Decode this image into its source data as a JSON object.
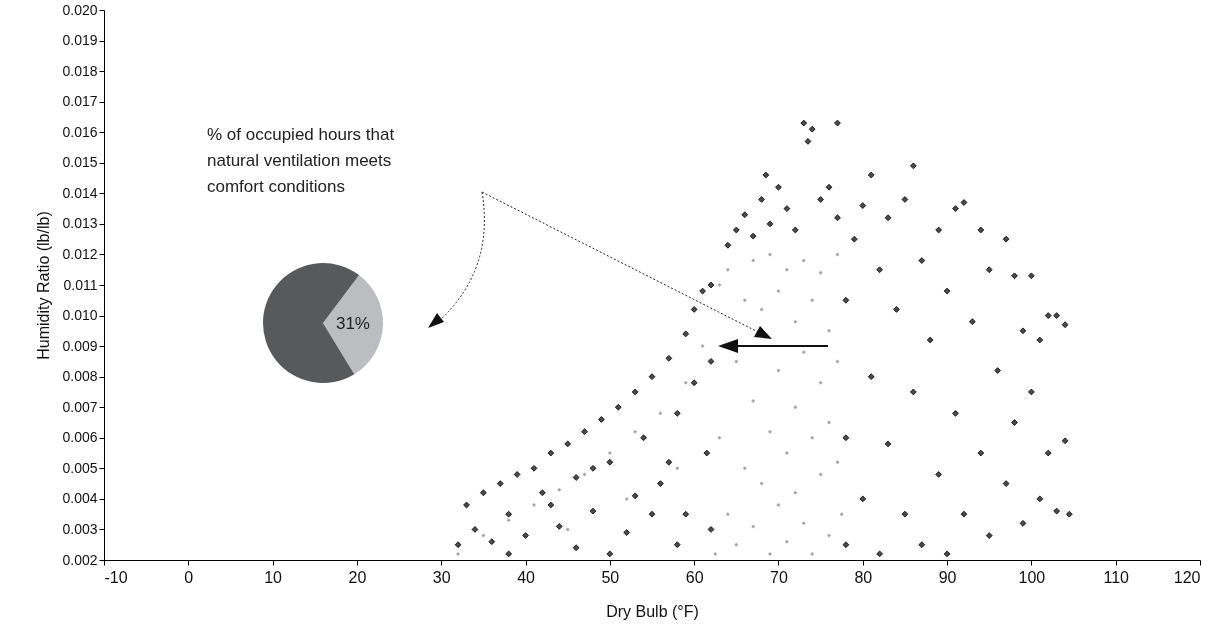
{
  "chart_data": [
    {
      "type": "scatter",
      "xlabel": "Dry Bulb (°F)",
      "ylabel": "Humidity Ratio (lb/lb)",
      "marker": "diamond",
      "xlim": [
        -10,
        120
      ],
      "xticks": [
        -10,
        0,
        10,
        20,
        30,
        40,
        50,
        60,
        70,
        80,
        90,
        100,
        110,
        120
      ],
      "ylim": [
        0.002,
        0.02
      ],
      "yticks": [
        0.002,
        0.003,
        0.004,
        0.005,
        0.006,
        0.007,
        0.008,
        0.009,
        {
          "value": 0.01,
          "label": "0.010"
        },
        0.011,
        0.012,
        0.013,
        0.014,
        0.015,
        0.016,
        0.017,
        0.018,
        0.019,
        {
          "value": 0.02,
          "label": "0.020"
        }
      ],
      "series": [
        {
          "color": "#4a4a4a",
          "x": [
            32,
            33,
            34,
            35,
            36,
            37,
            38,
            39,
            40,
            41,
            42,
            43,
            44,
            45,
            46,
            47,
            48,
            49,
            50,
            51,
            52,
            53,
            54,
            55,
            56,
            57,
            58,
            59,
            60,
            61,
            61.5,
            62,
            60,
            58,
            55,
            50,
            46,
            57,
            53,
            48,
            43,
            38,
            59,
            62,
            62,
            64,
            65,
            66,
            67,
            68,
            69,
            70,
            71,
            72,
            73,
            73.5,
            74,
            75,
            76,
            77,
            77,
            68.5,
            78,
            78,
            78,
            79,
            80,
            80,
            81,
            81,
            82,
            82,
            83,
            83,
            84,
            85,
            85,
            86,
            86,
            87,
            87,
            88,
            89,
            89,
            90,
            90,
            91,
            91,
            92,
            92,
            93,
            94,
            94,
            95,
            95,
            96,
            97,
            97,
            98,
            98,
            99,
            99,
            100,
            100,
            101,
            101,
            102,
            102,
            103,
            103,
            104,
            104,
            104.5
          ],
          "values": [
            0.0025,
            0.0038,
            0.003,
            0.0042,
            0.0026,
            0.0045,
            0.0035,
            0.0048,
            0.0028,
            0.005,
            0.0042,
            0.0055,
            0.0031,
            0.0058,
            0.0047,
            0.0062,
            0.0036,
            0.0066,
            0.0052,
            0.007,
            0.0029,
            0.0075,
            0.006,
            0.008,
            0.0045,
            0.0086,
            0.0068,
            0.0094,
            0.0102,
            0.0108,
            0.0055,
            0.011,
            0.0078,
            0.0025,
            0.0035,
            0.0022,
            0.0024,
            0.0052,
            0.0041,
            0.005,
            0.0038,
            0.0022,
            0.0035,
            0.0085,
            0.003,
            0.0123,
            0.0128,
            0.0133,
            0.0126,
            0.0138,
            0.013,
            0.0142,
            0.0135,
            0.0128,
            0.0163,
            0.0157,
            0.0161,
            0.0138,
            0.0142,
            0.0132,
            0.0163,
            0.0146,
            0.0025,
            0.006,
            0.0105,
            0.0125,
            0.0136,
            0.004,
            0.0146,
            0.008,
            0.0115,
            0.0022,
            0.0132,
            0.0058,
            0.0102,
            0.0138,
            0.0035,
            0.0149,
            0.0075,
            0.0118,
            0.0025,
            0.0092,
            0.0128,
            0.0048,
            0.0108,
            0.0022,
            0.0135,
            0.0068,
            0.0137,
            0.0035,
            0.0098,
            0.0128,
            0.0055,
            0.0115,
            0.0028,
            0.0082,
            0.0125,
            0.0045,
            0.0113,
            0.0065,
            0.0095,
            0.0032,
            0.0113,
            0.0075,
            0.0092,
            0.004,
            0.01,
            0.0055,
            0.01,
            0.0036,
            0.0097,
            0.0059,
            0.0035
          ]
        },
        {
          "color": "#a8a8a8",
          "x": [
            32,
            35,
            38,
            41,
            44,
            47,
            50,
            53,
            56,
            59,
            61,
            45,
            52,
            58,
            62.5,
            63,
            63,
            64,
            64,
            65,
            65,
            66,
            66,
            67,
            67,
            67,
            68,
            68,
            69,
            69,
            69,
            70,
            70,
            70,
            71,
            71,
            71,
            72,
            72,
            72,
            73,
            73,
            73,
            74,
            74,
            74,
            75,
            75,
            75,
            76,
            76,
            76,
            77,
            77,
            77,
            77.5
          ],
          "values": [
            0.0022,
            0.0028,
            0.0033,
            0.0038,
            0.0043,
            0.0048,
            0.0055,
            0.0062,
            0.0068,
            0.0078,
            0.009,
            0.003,
            0.004,
            0.005,
            0.0022,
            0.011,
            0.006,
            0.0035,
            0.0115,
            0.0085,
            0.0025,
            0.0105,
            0.005,
            0.0118,
            0.0072,
            0.0031,
            0.0102,
            0.0045,
            0.012,
            0.0062,
            0.0022,
            0.0108,
            0.0082,
            0.0038,
            0.0115,
            0.0055,
            0.0026,
            0.0098,
            0.007,
            0.0042,
            0.0118,
            0.0088,
            0.0032,
            0.0105,
            0.006,
            0.0022,
            0.0114,
            0.0078,
            0.0048,
            0.0095,
            0.0065,
            0.0028,
            0.012,
            0.0085,
            0.0052,
            0.0035
          ]
        }
      ]
    },
    {
      "type": "pie",
      "categories": [
        null,
        null
      ],
      "values": [
        31,
        69
      ],
      "colors": [
        "#bcbdc0",
        "#58595b"
      ],
      "value_labels": [
        "31%",
        null
      ],
      "annotations": [
        "% of occupied hours that natural ventilation meets comfort conditions"
      ]
    }
  ]
}
